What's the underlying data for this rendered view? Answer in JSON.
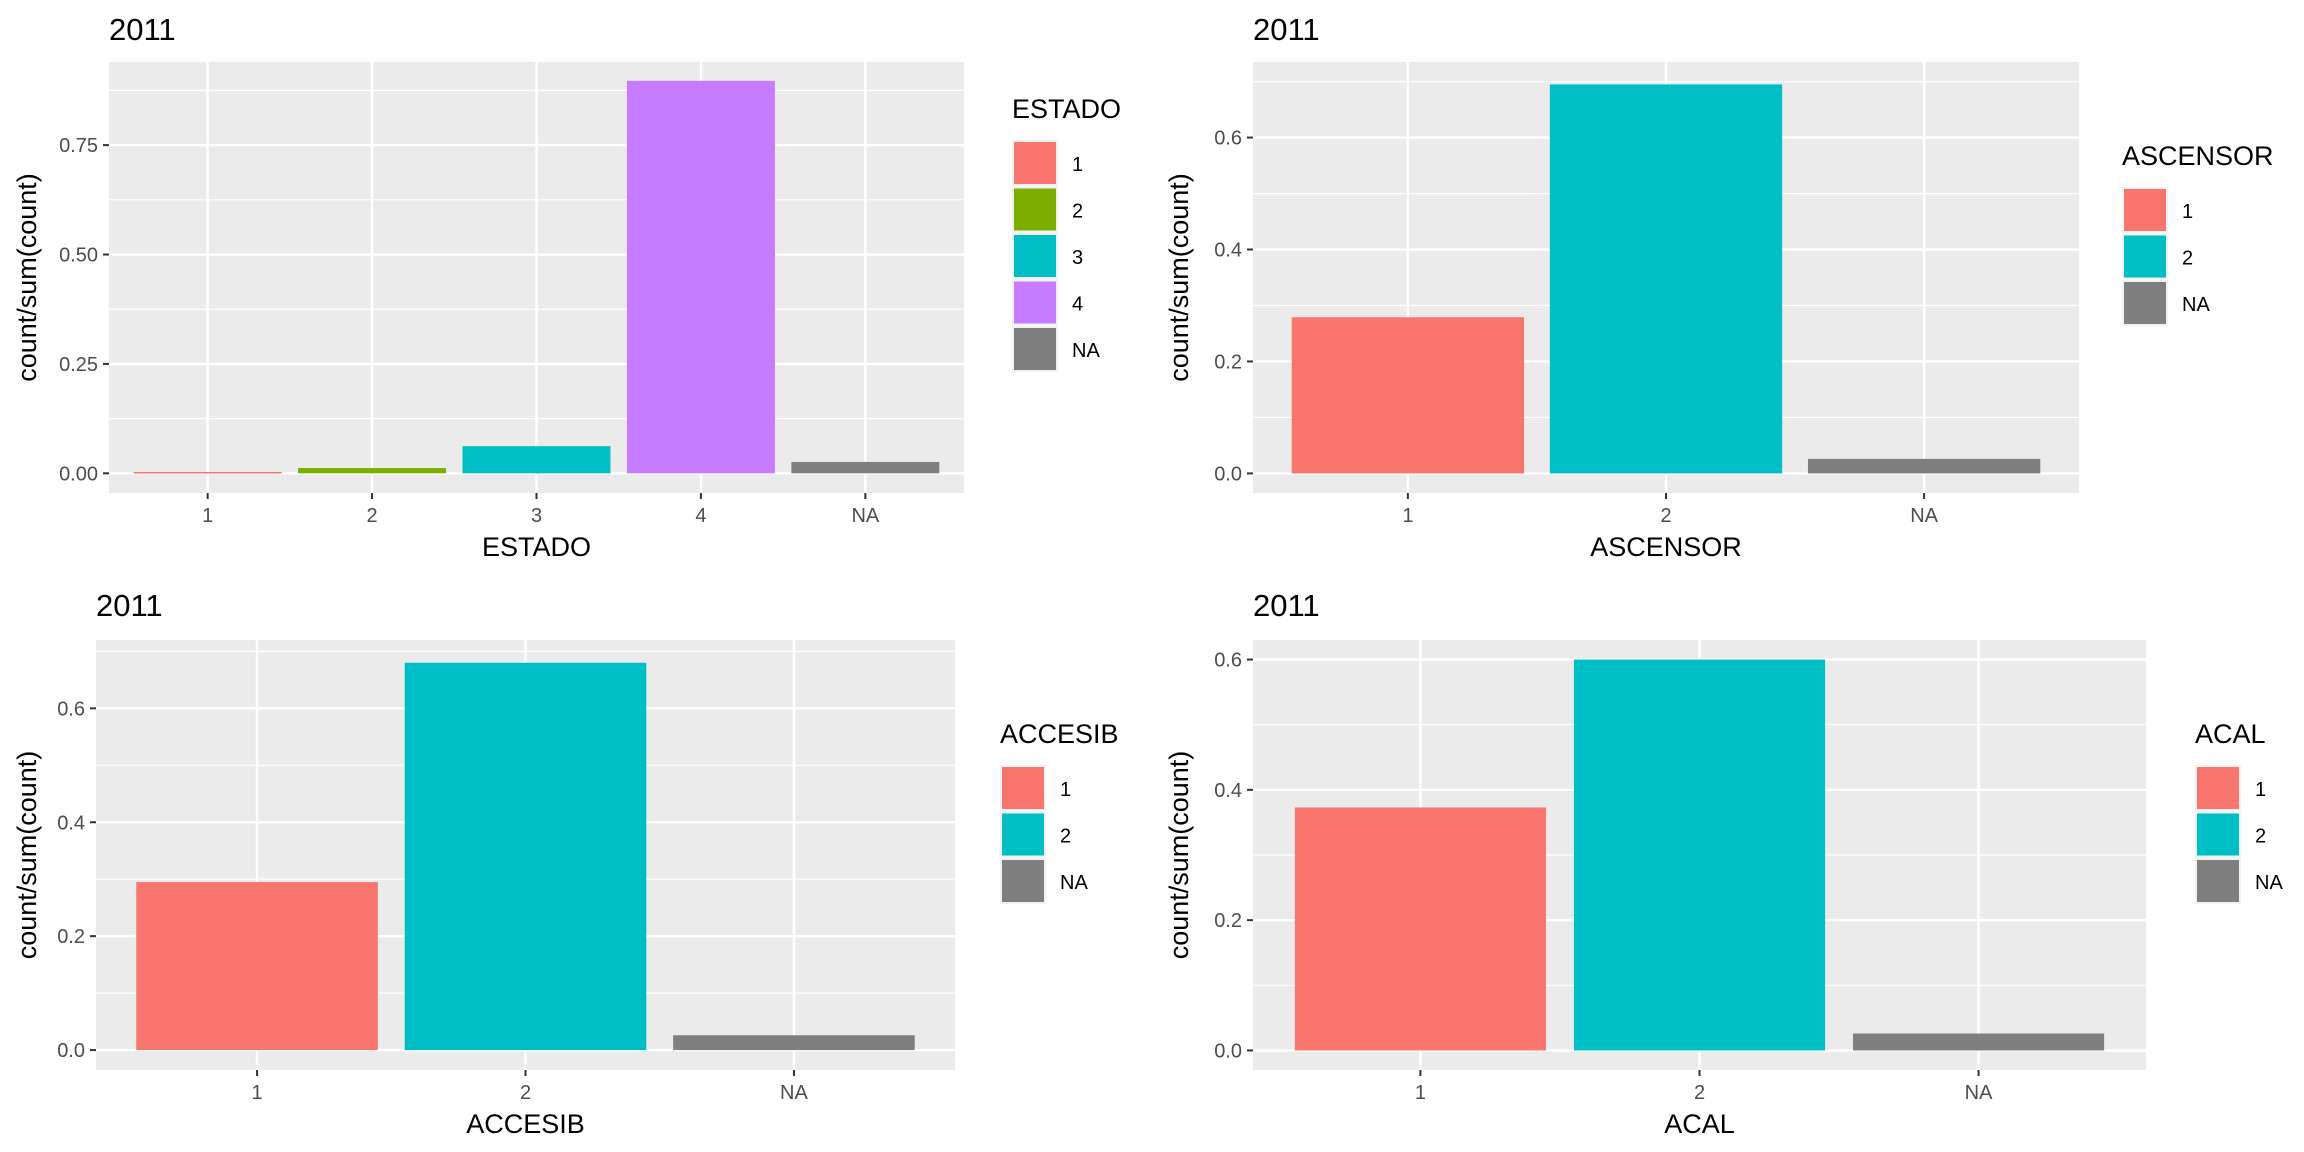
{
  "chart_data": [
    {
      "type": "bar",
      "title": "2011",
      "xlabel": "ESTADO",
      "ylabel": "count/sum(count)",
      "categories": [
        "1",
        "2",
        "3",
        "4",
        "NA"
      ],
      "values": [
        0.003,
        0.012,
        0.062,
        0.897,
        0.026
      ],
      "ylim": [
        -0.045,
        0.94
      ],
      "yticks": [
        0.0,
        0.25,
        0.5,
        0.75
      ],
      "ytick_labels": [
        "0.00",
        "0.25",
        "0.50",
        "0.75"
      ],
      "grid": true,
      "legend": {
        "title": "ESTADO",
        "position": "right",
        "entries": [
          {
            "label": "1",
            "color": "#F8766D"
          },
          {
            "label": "2",
            "color": "#7CAE00"
          },
          {
            "label": "3",
            "color": "#00BFC4"
          },
          {
            "label": "4",
            "color": "#C77CFF"
          },
          {
            "label": "NA",
            "color": "#7F7F7F"
          }
        ]
      },
      "colors": [
        "#F8766D",
        "#7CAE00",
        "#00BFC4",
        "#C77CFF",
        "#7F7F7F"
      ]
    },
    {
      "type": "bar",
      "title": "2011",
      "xlabel": "ASCENSOR",
      "ylabel": "count/sum(count)",
      "categories": [
        "1",
        "2",
        "NA"
      ],
      "values": [
        0.279,
        0.695,
        0.026
      ],
      "ylim": [
        -0.035,
        0.735
      ],
      "yticks": [
        0.0,
        0.2,
        0.4,
        0.6
      ],
      "ytick_labels": [
        "0.0",
        "0.2",
        "0.4",
        "0.6"
      ],
      "grid": true,
      "legend": {
        "title": "ASCENSOR",
        "position": "right",
        "entries": [
          {
            "label": "1",
            "color": "#F8766D"
          },
          {
            "label": "2",
            "color": "#00BFC4"
          },
          {
            "label": "NA",
            "color": "#7F7F7F"
          }
        ]
      },
      "colors": [
        "#F8766D",
        "#00BFC4",
        "#7F7F7F"
      ]
    },
    {
      "type": "bar",
      "title": "2011",
      "xlabel": "ACCESIB",
      "ylabel": "count/sum(count)",
      "categories": [
        "1",
        "2",
        "NA"
      ],
      "values": [
        0.295,
        0.68,
        0.026
      ],
      "ylim": [
        -0.035,
        0.72
      ],
      "yticks": [
        0.0,
        0.2,
        0.4,
        0.6
      ],
      "ytick_labels": [
        "0.0",
        "0.2",
        "0.4",
        "0.6"
      ],
      "grid": true,
      "legend": {
        "title": "ACCESIB",
        "position": "right",
        "entries": [
          {
            "label": "1",
            "color": "#F8766D"
          },
          {
            "label": "2",
            "color": "#00BFC4"
          },
          {
            "label": "NA",
            "color": "#7F7F7F"
          }
        ]
      },
      "colors": [
        "#F8766D",
        "#00BFC4",
        "#7F7F7F"
      ]
    },
    {
      "type": "bar",
      "title": "2011",
      "xlabel": "ACAL",
      "ylabel": "count/sum(count)",
      "categories": [
        "1",
        "2",
        "NA"
      ],
      "values": [
        0.373,
        0.6,
        0.026
      ],
      "ylim": [
        -0.03,
        0.63
      ],
      "yticks": [
        0.0,
        0.2,
        0.4,
        0.6
      ],
      "ytick_labels": [
        "0.0",
        "0.2",
        "0.4",
        "0.6"
      ],
      "grid": true,
      "legend": {
        "title": "ACAL",
        "position": "right",
        "entries": [
          {
            "label": "1",
            "color": "#F8766D"
          },
          {
            "label": "2",
            "color": "#00BFC4"
          },
          {
            "label": "NA",
            "color": "#7F7F7F"
          }
        ]
      },
      "colors": [
        "#F8766D",
        "#00BFC4",
        "#7F7F7F"
      ]
    }
  ]
}
